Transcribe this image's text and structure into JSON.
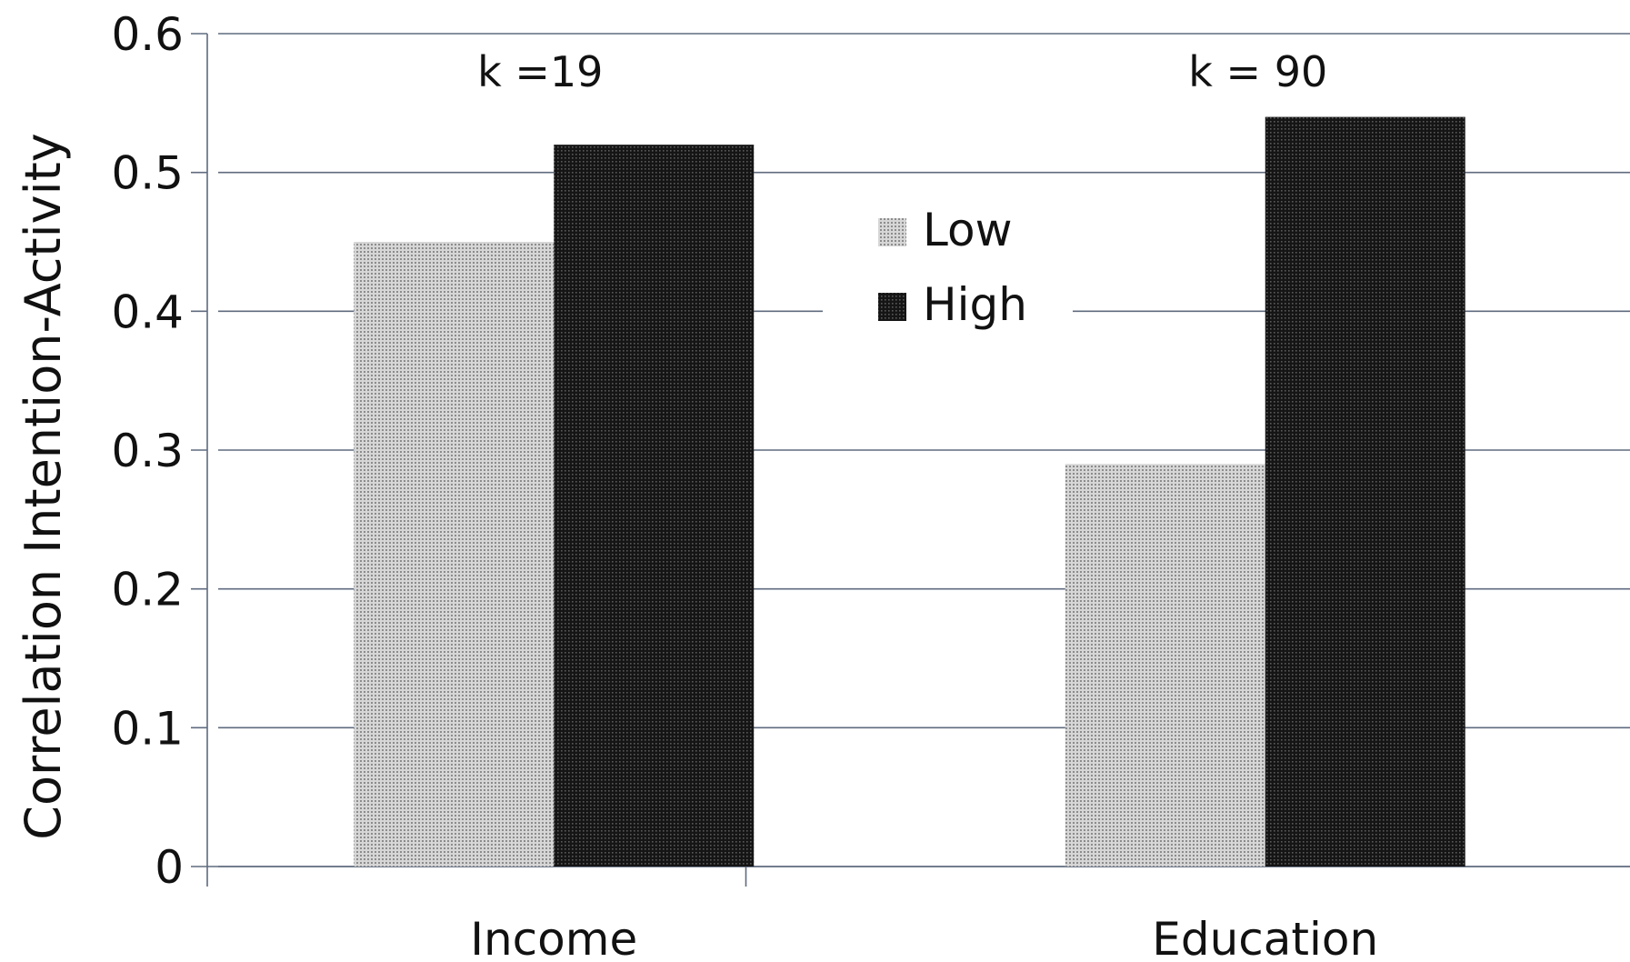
{
  "chart_data": {
    "type": "bar",
    "title": "",
    "xlabel": "",
    "ylabel": "Correlation Intention-Activity",
    "ylim": [
      0,
      0.6
    ],
    "yticks": [
      "0",
      "0.1",
      "0.2",
      "0.3",
      "0.4",
      "0.5",
      "0.6"
    ],
    "categories": [
      "Income",
      "Education"
    ],
    "series": [
      {
        "name": "Low",
        "values": [
          0.45,
          0.29
        ],
        "pattern": "light-dotted",
        "color": "#c8c8c8"
      },
      {
        "name": "High",
        "values": [
          0.52,
          0.54
        ],
        "pattern": "dark-dotted",
        "color": "#141414"
      }
    ],
    "annotations": [
      "k =19",
      "k = 90"
    ],
    "grid": true,
    "legend": "upper-center"
  }
}
